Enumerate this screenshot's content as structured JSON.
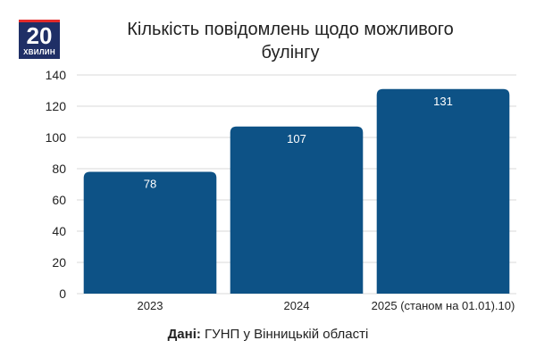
{
  "logo": {
    "number": "20",
    "word": "ХВИЛИН"
  },
  "source": {
    "label": "Дані:",
    "text": " ГУНП у Вінницькій області"
  },
  "colors": {
    "bar": "#0d5286",
    "grid": "#d9d9d9",
    "logo_bg": "#1f2f66",
    "logo_accent": "#e32b2b"
  },
  "chart_data": {
    "type": "bar",
    "title": "Кількість повідомлень щодо можливого булінгу",
    "categories": [
      "2023",
      "2024",
      "2025 (станом на 01.01).10)"
    ],
    "values": [
      78,
      107,
      131
    ],
    "data_labels": [
      "78",
      "107",
      "131"
    ],
    "ylim": [
      0,
      140
    ],
    "yticks": [
      "0",
      "20",
      "40",
      "60",
      "80",
      "100",
      "120",
      "140"
    ],
    "grid": true,
    "legend": "none"
  }
}
